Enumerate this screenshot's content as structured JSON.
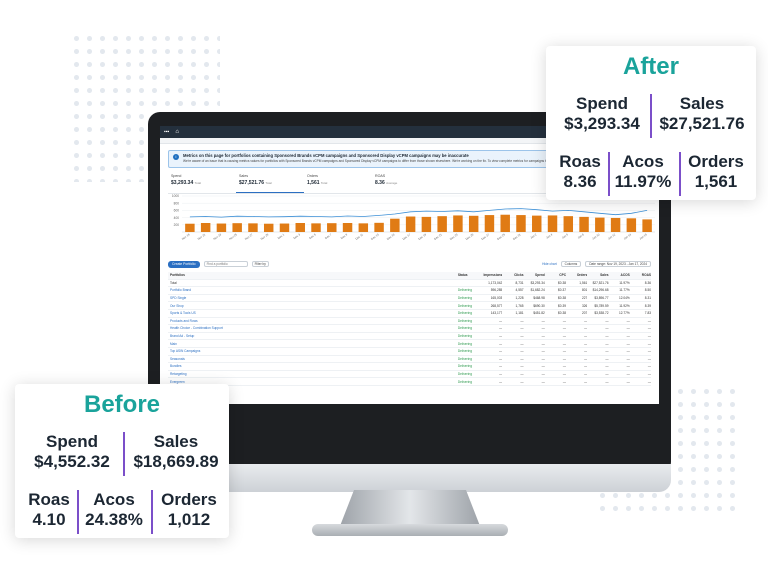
{
  "after_card": {
    "title": "After",
    "spend_label": "Spend",
    "spend_value": "$3,293.34",
    "sales_label": "Sales",
    "sales_value": "$27,521.76",
    "roas_label": "Roas",
    "roas_value": "8.36",
    "acos_label": "Acos",
    "acos_value": "11.97%",
    "orders_label": "Orders",
    "orders_value": "1,561"
  },
  "before_card": {
    "title": "Before",
    "spend_label": "Spend",
    "spend_value": "$4,552.32",
    "sales_label": "Sales",
    "sales_value": "$18,669.89",
    "roas_label": "Roas",
    "roas_value": "4.10",
    "acos_label": "Acos",
    "acos_value": "24.38%",
    "orders_label": "Orders",
    "orders_value": "1,012"
  },
  "screen": {
    "alert_title": "Metrics on this page for portfolios containing Sponsored Brands vCPM campaigns and Sponsored Display vCPM campaigns may be inaccurate",
    "alert_body": "We're aware of an issue that is causing metrics values for portfolios with Sponsored Brands vCPM campaigns and Sponsored Display vCPM campaigns to differ from those shown elsewhere. We're working on the fix. To view complete metrics for campaigns that use vCPM bidding, go to the All campaigns page.",
    "metrics": [
      {
        "label": "Spend",
        "value": "$3,293.34",
        "sub": "Total"
      },
      {
        "label": "Sales",
        "value": "$27,521.76",
        "sub": "Total"
      },
      {
        "label": "Orders",
        "value": "1,561",
        "sub": "Total"
      },
      {
        "label": "ROAS",
        "value": "8.36",
        "sub": "Average"
      }
    ],
    "create_button": "Create Portfolio",
    "search_placeholder": "Find a portfolio",
    "filter_label": "Filter by",
    "toolbar_link": "Hide chart",
    "toolbar_columns": "Columns",
    "toolbar_date": "Date range: Nov 19, 2023 - Jan 17, 2024",
    "table": {
      "headers": [
        "Portfolios",
        "Status",
        "Impressions",
        "Clicks",
        "Spend",
        "CPC",
        "Orders",
        "Sales",
        "ACOS",
        "ROAS"
      ],
      "rows": [
        {
          "name": "Total",
          "status": "",
          "cells": [
            "1,173,042",
            "8,731",
            "$3,293.34",
            "$0.38",
            "1,561",
            "$27,521.76",
            "11.97%",
            "8.36"
          ]
        },
        {
          "name": "Portfolio Brand",
          "status": "Delivering",
          "cells": [
            "596,285",
            "4,557",
            "$1,682.24",
            "$0.37",
            "801",
            "$14,296.68",
            "11.77%",
            "8.50"
          ]
        },
        {
          "name": "SPD Single",
          "status": "Delivering",
          "cells": [
            "165,003",
            "1,228",
            "$468.98",
            "$0.38",
            "227",
            "$3,896.77",
            "12.04%",
            "8.31"
          ]
        },
        {
          "name": "Our Shop",
          "status": "Delivering",
          "cells": [
            "268,577",
            "1,765",
            "$690.30",
            "$0.39",
            "326",
            "$5,789.59",
            "11.92%",
            "8.39"
          ]
        },
        {
          "name": "Sports & Tools US",
          "status": "Delivering",
          "cells": [
            "143,177",
            "1,181",
            "$451.82",
            "$0.38",
            "207",
            "$3,538.72",
            "12.77%",
            "7.83"
          ]
        },
        {
          "name": "Products and Rows",
          "status": "Delivering",
          "cells": [
            "—",
            "—",
            "—",
            "—",
            "—",
            "—",
            "—",
            "—"
          ]
        },
        {
          "name": "Health Choice - Combination Support",
          "status": "Delivering",
          "cells": [
            "—",
            "—",
            "—",
            "—",
            "—",
            "—",
            "—",
            "—"
          ]
        },
        {
          "name": "Brand Ad - Setup",
          "status": "Delivering",
          "cells": [
            "—",
            "—",
            "—",
            "—",
            "—",
            "—",
            "—",
            "—"
          ]
        },
        {
          "name": "Main",
          "status": "Delivering",
          "cells": [
            "—",
            "—",
            "—",
            "—",
            "—",
            "—",
            "—",
            "—"
          ]
        },
        {
          "name": "Top ASIN Campaigns",
          "status": "Delivering",
          "cells": [
            "—",
            "—",
            "—",
            "—",
            "—",
            "—",
            "—",
            "—"
          ]
        },
        {
          "name": "Seasonals",
          "status": "Delivering",
          "cells": [
            "—",
            "—",
            "—",
            "—",
            "—",
            "—",
            "—",
            "—"
          ]
        },
        {
          "name": "Bundles",
          "status": "Delivering",
          "cells": [
            "—",
            "—",
            "—",
            "—",
            "—",
            "—",
            "—",
            "—"
          ]
        },
        {
          "name": "Retargeting",
          "status": "Delivering",
          "cells": [
            "—",
            "—",
            "—",
            "—",
            "—",
            "—",
            "—",
            "—"
          ]
        },
        {
          "name": "Evergreen",
          "status": "Delivering",
          "cells": [
            "—",
            "—",
            "—",
            "—",
            "—",
            "—",
            "—",
            "—"
          ]
        }
      ]
    }
  },
  "chart_data": {
    "type": "bar",
    "yticks": [
      "1000",
      "800",
      "600",
      "400",
      "200"
    ],
    "ylim": [
      0,
      1000
    ],
    "categories": [
      "Nov 19",
      "Nov 21",
      "Nov 23",
      "Nov 25",
      "Nov 27",
      "Nov 29",
      "Dec 1",
      "Dec 3",
      "Dec 5",
      "Dec 7",
      "Dec 9",
      "Dec 11",
      "Dec 13",
      "Dec 15",
      "Dec 17",
      "Dec 19",
      "Dec 21",
      "Dec 23",
      "Dec 25",
      "Dec 27",
      "Dec 29",
      "Dec 31",
      "Jan 2",
      "Jan 4",
      "Jan 6",
      "Jan 8",
      "Jan 10",
      "Jan 12",
      "Jan 14",
      "Jan 16"
    ],
    "series": [
      {
        "values": [
          230,
          250,
          235,
          245,
          240,
          230,
          235,
          250,
          240,
          245,
          250,
          240,
          255,
          370,
          430,
          420,
          440,
          460,
          450,
          470,
          480,
          470,
          455,
          460,
          440,
          420,
          400,
          390,
          380,
          350
        ]
      },
      {
        "values": [
          420,
          430,
          415,
          440,
          430,
          420,
          425,
          440,
          430,
          420,
          445,
          430,
          460,
          500,
          560,
          580,
          570,
          590,
          560,
          600,
          640,
          650,
          620,
          580,
          600,
          560,
          520,
          480,
          520,
          600
        ]
      }
    ],
    "colors": {
      "bars": "#e07b14",
      "line": "#3c8fd6"
    }
  }
}
